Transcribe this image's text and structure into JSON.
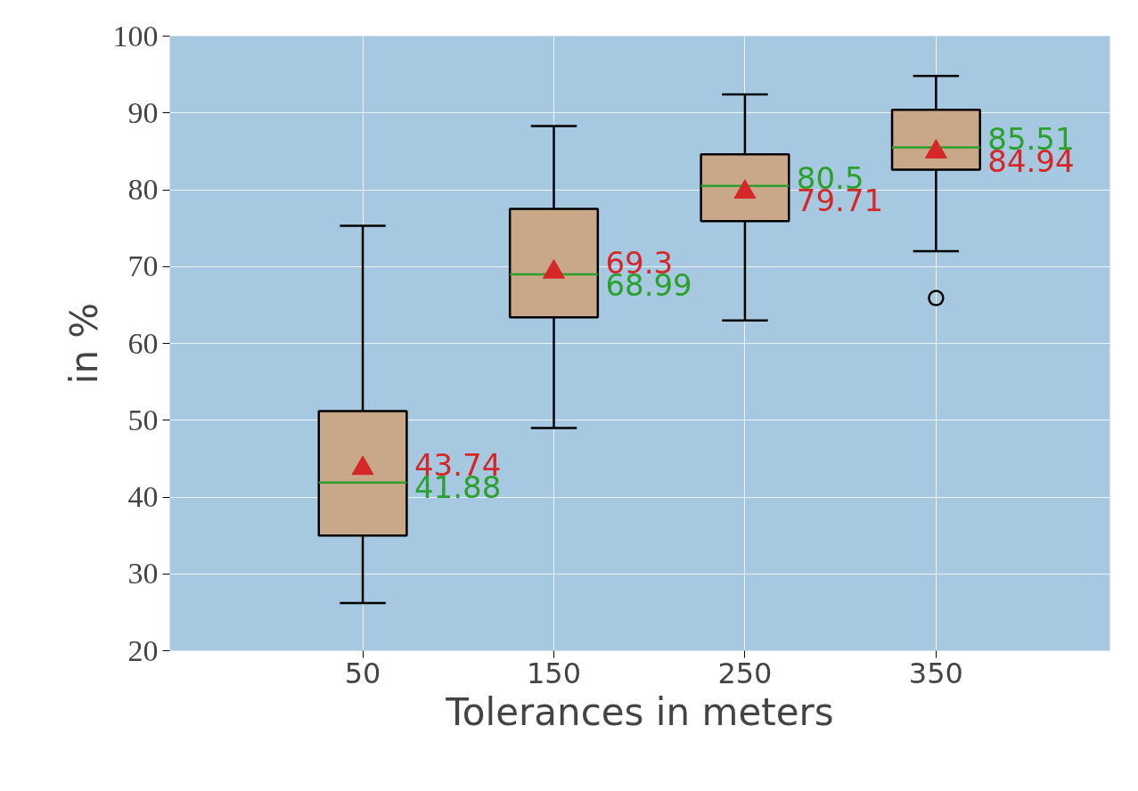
{
  "chart_data": {
    "type": "box",
    "xlabel": "Tolerances in meters",
    "ylabel": "in %",
    "categories": [
      "50",
      "150",
      "250",
      "350"
    ],
    "boxes": [
      {
        "low": 26.2,
        "q1": 35.0,
        "median": 41.88,
        "q3": 51.2,
        "high": 75.3
      },
      {
        "low": 49.0,
        "q1": 63.4,
        "median": 68.99,
        "q3": 77.5,
        "high": 88.3
      },
      {
        "low": 63.0,
        "q1": 75.9,
        "median": 80.5,
        "q3": 84.6,
        "high": 92.4
      },
      {
        "low": 72.0,
        "q1": 82.6,
        "median": 85.51,
        "q3": 90.4,
        "high": 94.8,
        "outliers": [
          65.9
        ]
      }
    ],
    "series": [
      {
        "type": "scatter",
        "x": [
          "50",
          "150",
          "250",
          "350"
        ],
        "values": [
          43.74,
          69.3,
          79.71,
          84.94
        ],
        "color": "#d62728"
      }
    ],
    "annotations": [
      {
        "text": "43.74",
        "x": "50",
        "y": 43.74
      },
      {
        "text": "41.88",
        "x": "50",
        "y": 41.88
      },
      {
        "text": "69.3",
        "x": "150",
        "y": 69.3
      },
      {
        "text": "68.99",
        "x": "150",
        "y": 68.99
      },
      {
        "text": "80.5",
        "x": "250",
        "y": 80.5
      },
      {
        "text": "79.71",
        "x": "250",
        "y": 79.71
      },
      {
        "text": "85.51",
        "x": "350",
        "y": 85.51
      },
      {
        "text": "84.94",
        "x": "350",
        "y": 84.94
      }
    ],
    "ylim": [
      20,
      100
    ],
    "yticks": [
      20,
      30,
      40,
      50,
      60,
      70,
      80,
      90,
      100
    ],
    "grid": true,
    "marker": "triangle"
  }
}
